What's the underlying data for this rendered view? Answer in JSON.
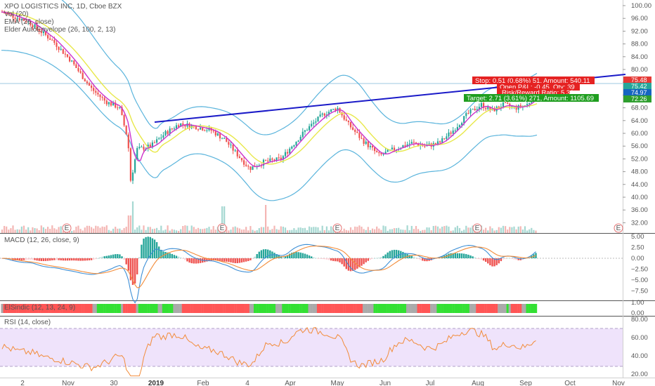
{
  "legend": {
    "symbol": "XPO LOGISTICS INC, 1D, Cboe BZX",
    "vol": "Vol (20)",
    "ema": "EMA (26, close)",
    "elder": "Elder AutoEnvelope (26, 100, 2, 13)"
  },
  "panes": {
    "macd_title": "MACD (12, 26, close, 9)",
    "elsindic_title": "ElSindic (12, 13, 24, 9)",
    "rsi_title": "RSI (14, close)"
  },
  "price_axis": [
    "100.00",
    "96.00",
    "92.00",
    "88.00",
    "84.00",
    "80.00",
    "76.00",
    "72.00",
    "68.00",
    "64.00",
    "60.00",
    "56.00",
    "52.00",
    "48.00",
    "44.00",
    "40.00",
    "36.00",
    "32.00"
  ],
  "macd_axis": [
    "5.00",
    "2.50",
    "0.00",
    "−2.50",
    "−5.00",
    "−7.50"
  ],
  "elsindic_axis": [
    "1.00",
    "0.00"
  ],
  "rsi_axis": [
    "80.00",
    "60.00",
    "40.00",
    "20.00"
  ],
  "x_axis": [
    {
      "label": "2",
      "bold": false
    },
    {
      "label": "Nov",
      "bold": false
    },
    {
      "label": "30",
      "bold": false
    },
    {
      "label": "2019",
      "bold": true
    },
    {
      "label": "Feb",
      "bold": false
    },
    {
      "label": "4",
      "bold": false
    },
    {
      "label": "Apr",
      "bold": false
    },
    {
      "label": "May",
      "bold": false
    },
    {
      "label": "Jun",
      "bold": false
    },
    {
      "label": "Jul",
      "bold": false
    },
    {
      "label": "Aug",
      "bold": false
    },
    {
      "label": "Sep",
      "bold": false
    },
    {
      "label": "Oct",
      "bold": false
    },
    {
      "label": "Nov",
      "bold": false
    }
  ],
  "price_tags": [
    {
      "text": "75.48",
      "color": "#e53935"
    },
    {
      "text": "75.42",
      "color": "#26a69a"
    },
    {
      "text": "74.97",
      "color": "#1565c0"
    },
    {
      "text": "72.26",
      "color": "#2e9e2e"
    }
  ],
  "position_box": {
    "stop": "Stop: 0.51 (0.68%) 51, Amount: 540.11",
    "open": "Open P&L: -0.45, Qty: 39",
    "risk_reward": "Risk/Reward Ratio: 5.31",
    "target": "Target: 2.71 (3.61%) 271, Amount: 1105.69"
  },
  "earnings_marker": "E",
  "colors": {
    "up": "#26a69a",
    "down": "#ef5350",
    "trendline": "#1a1ac8",
    "ema": "#e8e84a",
    "envelope": "#5ab4dc",
    "fast_ema": "#cc33cc",
    "macd_line": "#3d8fd6",
    "signal_line": "#f28c3a",
    "rsi_line": "#f28c3a",
    "rsi_band": "#efe3fb",
    "stop_bg": "#e52222",
    "target_bg": "#1f9e1f",
    "green_bar": "#33e033",
    "red_bar": "#ff5555",
    "gray_bar": "#aaaaaa"
  }
}
